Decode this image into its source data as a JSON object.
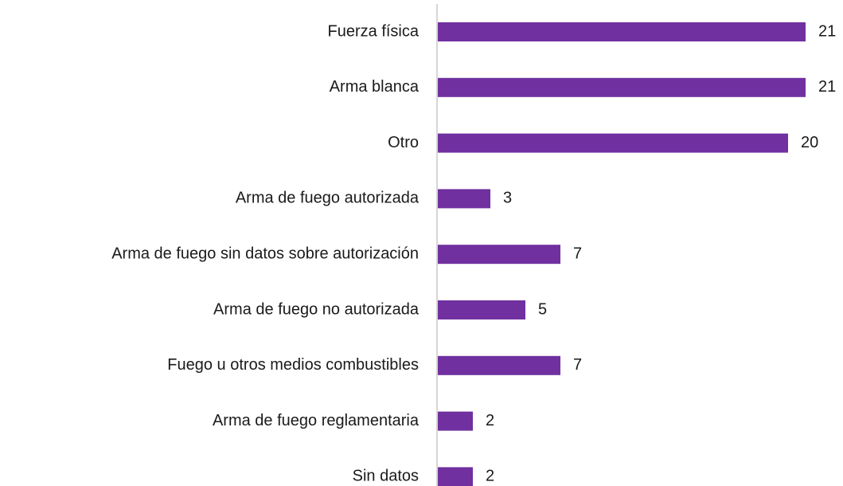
{
  "chart_data": {
    "type": "bar",
    "orientation": "horizontal",
    "categories": [
      "Fuerza física",
      "Arma blanca",
      "Otro",
      "Arma de fuego autorizada",
      "Arma de fuego sin datos sobre autorización",
      "Arma de fuego no autorizada",
      "Fuego u otros medios combustibles",
      "Arma de fuego reglamentaria",
      "Sin datos"
    ],
    "values": [
      21,
      21,
      20,
      3,
      7,
      5,
      7,
      2,
      2
    ],
    "color": "#7030a0"
  }
}
